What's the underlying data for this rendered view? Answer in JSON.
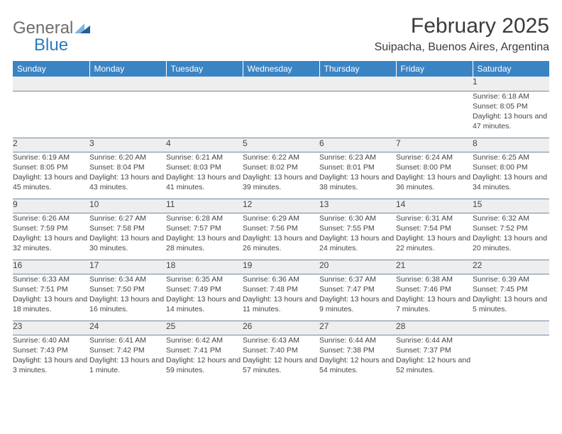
{
  "logo": {
    "text_general": "General",
    "text_blue": "Blue"
  },
  "title": "February 2025",
  "location": "Suipacha, Buenos Aires, Argentina",
  "colors": {
    "header_bg": "#3b84c4",
    "header_text": "#ffffff",
    "daynum_bg": "#eeeeee",
    "text": "#444444",
    "rule": "#6f8aa3",
    "logo_grey": "#6d6d6d",
    "logo_blue": "#2b7bbf",
    "tri_light": "#7fb4de",
    "tri_dark": "#1e5e9c"
  },
  "day_headers": [
    "Sunday",
    "Monday",
    "Tuesday",
    "Wednesday",
    "Thursday",
    "Friday",
    "Saturday"
  ],
  "weeks": [
    {
      "nums": [
        "",
        "",
        "",
        "",
        "",
        "",
        "1"
      ],
      "cells": [
        "",
        "",
        "",
        "",
        "",
        "",
        "Sunrise: 6:18 AM\nSunset: 8:05 PM\nDaylight: 13 hours and 47 minutes."
      ]
    },
    {
      "nums": [
        "2",
        "3",
        "4",
        "5",
        "6",
        "7",
        "8"
      ],
      "cells": [
        "Sunrise: 6:19 AM\nSunset: 8:05 PM\nDaylight: 13 hours and 45 minutes.",
        "Sunrise: 6:20 AM\nSunset: 8:04 PM\nDaylight: 13 hours and 43 minutes.",
        "Sunrise: 6:21 AM\nSunset: 8:03 PM\nDaylight: 13 hours and 41 minutes.",
        "Sunrise: 6:22 AM\nSunset: 8:02 PM\nDaylight: 13 hours and 39 minutes.",
        "Sunrise: 6:23 AM\nSunset: 8:01 PM\nDaylight: 13 hours and 38 minutes.",
        "Sunrise: 6:24 AM\nSunset: 8:00 PM\nDaylight: 13 hours and 36 minutes.",
        "Sunrise: 6:25 AM\nSunset: 8:00 PM\nDaylight: 13 hours and 34 minutes."
      ]
    },
    {
      "nums": [
        "9",
        "10",
        "11",
        "12",
        "13",
        "14",
        "15"
      ],
      "cells": [
        "Sunrise: 6:26 AM\nSunset: 7:59 PM\nDaylight: 13 hours and 32 minutes.",
        "Sunrise: 6:27 AM\nSunset: 7:58 PM\nDaylight: 13 hours and 30 minutes.",
        "Sunrise: 6:28 AM\nSunset: 7:57 PM\nDaylight: 13 hours and 28 minutes.",
        "Sunrise: 6:29 AM\nSunset: 7:56 PM\nDaylight: 13 hours and 26 minutes.",
        "Sunrise: 6:30 AM\nSunset: 7:55 PM\nDaylight: 13 hours and 24 minutes.",
        "Sunrise: 6:31 AM\nSunset: 7:54 PM\nDaylight: 13 hours and 22 minutes.",
        "Sunrise: 6:32 AM\nSunset: 7:52 PM\nDaylight: 13 hours and 20 minutes."
      ]
    },
    {
      "nums": [
        "16",
        "17",
        "18",
        "19",
        "20",
        "21",
        "22"
      ],
      "cells": [
        "Sunrise: 6:33 AM\nSunset: 7:51 PM\nDaylight: 13 hours and 18 minutes.",
        "Sunrise: 6:34 AM\nSunset: 7:50 PM\nDaylight: 13 hours and 16 minutes.",
        "Sunrise: 6:35 AM\nSunset: 7:49 PM\nDaylight: 13 hours and 14 minutes.",
        "Sunrise: 6:36 AM\nSunset: 7:48 PM\nDaylight: 13 hours and 11 minutes.",
        "Sunrise: 6:37 AM\nSunset: 7:47 PM\nDaylight: 13 hours and 9 minutes.",
        "Sunrise: 6:38 AM\nSunset: 7:46 PM\nDaylight: 13 hours and 7 minutes.",
        "Sunrise: 6:39 AM\nSunset: 7:45 PM\nDaylight: 13 hours and 5 minutes."
      ]
    },
    {
      "nums": [
        "23",
        "24",
        "25",
        "26",
        "27",
        "28",
        ""
      ],
      "cells": [
        "Sunrise: 6:40 AM\nSunset: 7:43 PM\nDaylight: 13 hours and 3 minutes.",
        "Sunrise: 6:41 AM\nSunset: 7:42 PM\nDaylight: 13 hours and 1 minute.",
        "Sunrise: 6:42 AM\nSunset: 7:41 PM\nDaylight: 12 hours and 59 minutes.",
        "Sunrise: 6:43 AM\nSunset: 7:40 PM\nDaylight: 12 hours and 57 minutes.",
        "Sunrise: 6:44 AM\nSunset: 7:38 PM\nDaylight: 12 hours and 54 minutes.",
        "Sunrise: 6:44 AM\nSunset: 7:37 PM\nDaylight: 12 hours and 52 minutes.",
        ""
      ]
    }
  ]
}
